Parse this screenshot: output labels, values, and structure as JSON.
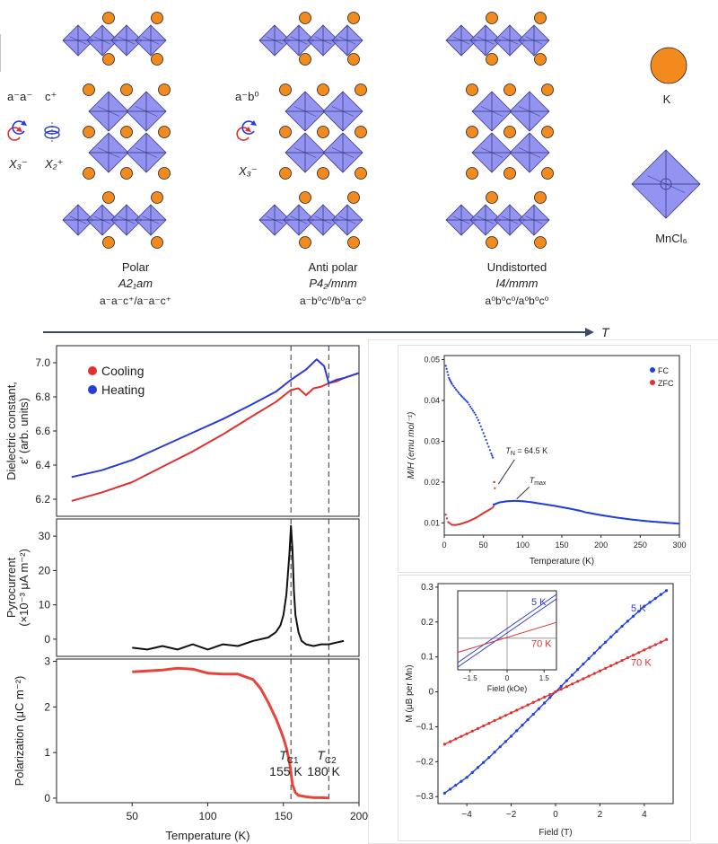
{
  "structures": [
    {
      "name": "Polar",
      "group": "A2₁am",
      "glazer": "a⁻a⁻c⁺/a⁻a⁻c⁺",
      "modes": [
        {
          "title": "a⁻a⁻",
          "irrep": "X₃⁻"
        },
        {
          "title": "c⁺",
          "irrep": "X₂⁺"
        }
      ]
    },
    {
      "name": "Anti polar",
      "group": "P4₂/mnm",
      "glazer": "a⁻b⁰c⁰/b⁰a⁻c⁰",
      "modes": [
        {
          "title": "a⁻b⁰",
          "irrep": "X₃⁻"
        }
      ]
    },
    {
      "name": "Undistorted",
      "group": "I4/mmm",
      "glazer": "a⁰b⁰c⁰/a⁰b⁰c⁰",
      "modes": []
    }
  ],
  "legend_atoms": {
    "k_label": "K",
    "oct_label": "MnCl₆"
  },
  "temperature_arrow": {
    "label": "T"
  },
  "colors": {
    "octahedron": "#8080f0",
    "potassium": "#f28a1e",
    "red": "#e03030",
    "blue": "#2a3bd6",
    "black": "#111111"
  },
  "chart_data": [
    {
      "type": "line",
      "panel": "dielectric",
      "ylabel": "Dielectric constant,\nε′ (arb. units)",
      "xlim": [
        0,
        200
      ],
      "ylim": [
        6.1,
        7.1
      ],
      "yticks": [
        6.2,
        6.4,
        6.6,
        6.8,
        7.0
      ],
      "legend": [
        "Cooling",
        "Heating"
      ],
      "series": [
        {
          "name": "Cooling",
          "color": "#e03030",
          "x": [
            10,
            30,
            50,
            70,
            90,
            110,
            130,
            145,
            155,
            160,
            165,
            170,
            175,
            180,
            185,
            190,
            200
          ],
          "y": [
            6.19,
            6.24,
            6.3,
            6.39,
            6.48,
            6.58,
            6.69,
            6.77,
            6.84,
            6.85,
            6.81,
            6.85,
            6.86,
            6.88,
            6.89,
            6.91,
            6.94
          ]
        },
        {
          "name": "Heating",
          "color": "#2a3bd6",
          "x": [
            10,
            30,
            50,
            70,
            90,
            110,
            130,
            145,
            155,
            165,
            172,
            177,
            180,
            185,
            190,
            200
          ],
          "y": [
            6.33,
            6.37,
            6.43,
            6.51,
            6.59,
            6.67,
            6.76,
            6.83,
            6.9,
            6.96,
            7.02,
            6.98,
            6.88,
            6.9,
            6.91,
            6.94
          ]
        }
      ],
      "vlines": [
        155,
        180
      ]
    },
    {
      "type": "line",
      "panel": "pyrocurrent",
      "ylabel": "Pyrocurrent\n(×10⁻³ μA m⁻²)",
      "xlim": [
        0,
        200
      ],
      "ylim": [
        -5,
        35
      ],
      "yticks": [
        0,
        10,
        20,
        30
      ],
      "series": [
        {
          "name": "",
          "color": "#111111",
          "x": [
            50,
            60,
            70,
            80,
            90,
            100,
            110,
            120,
            130,
            140,
            145,
            148,
            150,
            152,
            154,
            155,
            156,
            157,
            158,
            160,
            162,
            165,
            170,
            175,
            180,
            185,
            190
          ],
          "y": [
            -2.5,
            -3,
            -2,
            -3,
            -1.5,
            -3,
            -1.5,
            -2,
            -0.5,
            0.5,
            2,
            4,
            7,
            13,
            25,
            33,
            26,
            14,
            7,
            2,
            -0.5,
            -1.5,
            -2,
            -1.5,
            -1.5,
            -1,
            -0.5
          ]
        }
      ],
      "vlines": [
        155,
        180
      ]
    },
    {
      "type": "line",
      "panel": "polarization",
      "ylabel": "Polarization (μC m⁻²)",
      "xlabel": "Temperature (K)",
      "xlim": [
        0,
        200
      ],
      "ylim": [
        -0.1,
        3.05
      ],
      "xticks": [
        50,
        100,
        150,
        200
      ],
      "yticks": [
        0,
        1,
        2,
        3
      ],
      "series": [
        {
          "name": "",
          "color": "#e8443a",
          "x": [
            50,
            60,
            70,
            80,
            90,
            100,
            110,
            120,
            130,
            135,
            140,
            145,
            148,
            150,
            152,
            154,
            155,
            156,
            158,
            160,
            165,
            170,
            175,
            180
          ],
          "y": [
            2.77,
            2.79,
            2.81,
            2.85,
            2.83,
            2.74,
            2.72,
            2.72,
            2.6,
            2.4,
            2.1,
            1.75,
            1.5,
            1.32,
            1.1,
            0.8,
            0.55,
            0.3,
            0.12,
            0.06,
            0.03,
            0.01,
            0.01,
            0.0
          ]
        }
      ],
      "annotations": [
        {
          "sym": "T",
          "sub": "C1",
          "val": "155 K"
        },
        {
          "sym": "T",
          "sub": "C2",
          "val": "180 K"
        }
      ],
      "vlines": [
        155,
        180
      ]
    },
    {
      "type": "scatter",
      "panel": "magnetization_T",
      "ylabel": "M/H (emu mol⁻¹)",
      "xlabel": "Temperature (K)",
      "xlim": [
        0,
        300
      ],
      "ylim": [
        0.007,
        0.051
      ],
      "xticks": [
        0,
        50,
        100,
        150,
        200,
        250,
        300
      ],
      "yticks": [
        0.01,
        0.02,
        0.03,
        0.04,
        0.05
      ],
      "legend": [
        "FC",
        "ZFC"
      ],
      "annotations": [
        {
          "text": "T",
          "sub": "N",
          "rest": " = 64.5 K",
          "x": 64.5,
          "y": 0.0195
        },
        {
          "text": "T",
          "sub": "max",
          "rest": "",
          "x": 97,
          "y": 0.0152
        }
      ],
      "series": [
        {
          "name": "FC",
          "color": "#1f3fe0",
          "x": [
            2,
            4,
            6,
            8,
            10,
            15,
            20,
            25,
            30,
            35,
            40,
            45,
            50,
            55,
            60,
            62,
            64,
            66,
            70,
            80,
            90,
            100,
            110,
            120,
            140,
            160,
            175,
            180,
            200,
            220,
            240,
            260,
            280,
            300
          ],
          "y": [
            0.0485,
            0.047,
            0.0455,
            0.0447,
            0.044,
            0.0427,
            0.0415,
            0.0405,
            0.0395,
            0.038,
            0.0365,
            0.0345,
            0.032,
            0.0295,
            0.027,
            0.026,
            0.0145,
            0.0147,
            0.015,
            0.0153,
            0.0154,
            0.0153,
            0.0151,
            0.0148,
            0.0142,
            0.0135,
            0.0129,
            0.0126,
            0.0119,
            0.0113,
            0.0108,
            0.0104,
            0.0101,
            0.0098
          ]
        },
        {
          "name": "ZFC",
          "color": "#e03030",
          "x": [
            2,
            5,
            10,
            15,
            20,
            30,
            40,
            50,
            60,
            63,
            64,
            65
          ],
          "y": [
            0.012,
            0.0102,
            0.0095,
            0.0095,
            0.0097,
            0.0103,
            0.0112,
            0.0124,
            0.0135,
            0.014,
            0.02,
            0.017
          ]
        }
      ]
    },
    {
      "type": "line",
      "panel": "magnetization_H",
      "ylabel": "M (μB per Mn)",
      "xlabel": "Field (T)",
      "xlim": [
        -5.3,
        5.3
      ],
      "ylim": [
        -0.32,
        0.31
      ],
      "xticks": [
        -4,
        -2,
        0,
        2,
        4
      ],
      "yticks": [
        -0.3,
        -0.2,
        -0.1,
        0,
        0.1,
        0.2,
        0.3
      ],
      "series": [
        {
          "name": "5 K",
          "color": "#1f3fe0",
          "x": [
            -5,
            -4,
            -3,
            -2,
            -1,
            0,
            1,
            2,
            3,
            4,
            5
          ],
          "y": [
            -0.29,
            -0.245,
            -0.188,
            -0.127,
            -0.064,
            0.0,
            0.064,
            0.127,
            0.188,
            0.245,
            0.29
          ]
        },
        {
          "name": "70 K",
          "color": "#e03030",
          "x": [
            -5,
            -4,
            -3,
            -2,
            -1,
            0,
            1,
            2,
            3,
            4,
            5
          ],
          "y": [
            -0.15,
            -0.12,
            -0.09,
            -0.06,
            -0.03,
            0.0,
            0.03,
            0.06,
            0.09,
            0.12,
            0.15
          ]
        }
      ],
      "inset": {
        "xlabel": "Field (kOe)",
        "xticks": [
          -1.5,
          0,
          1.5
        ],
        "labels": [
          "5 K",
          "70 K"
        ]
      }
    }
  ]
}
